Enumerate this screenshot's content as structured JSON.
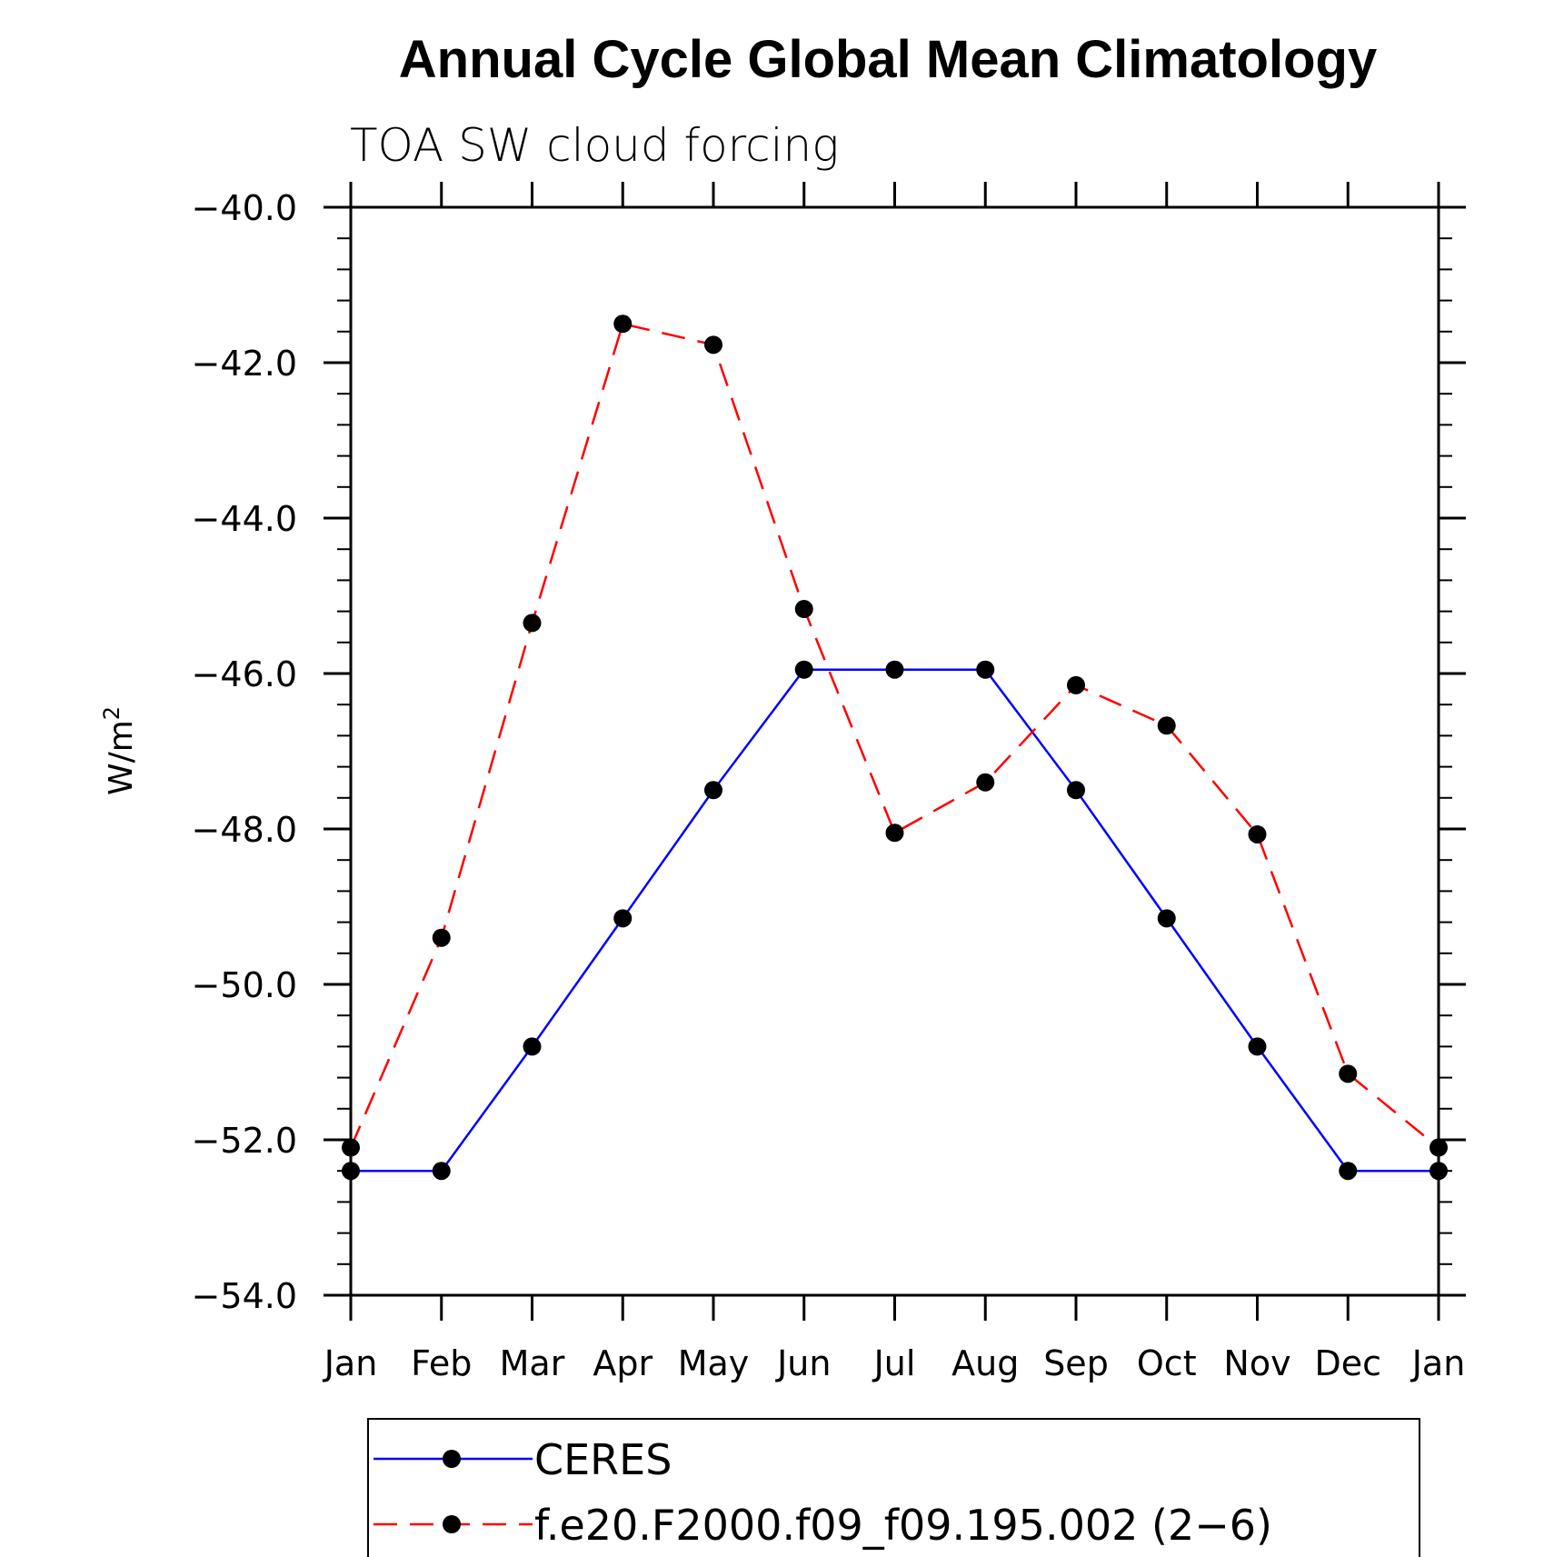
{
  "chart_data": {
    "type": "line",
    "title": "Annual Cycle Global Mean Climatology",
    "subtitle": "TOA SW cloud forcing",
    "ylabel": "W/m",
    "ylabel_sup": "2",
    "xlabel": "",
    "categories": [
      "Jan",
      "Feb",
      "Mar",
      "Apr",
      "May",
      "Jun",
      "Jul",
      "Aug",
      "Sep",
      "Oct",
      "Nov",
      "Dec",
      "Jan"
    ],
    "ylim": [
      -54.0,
      -40.0
    ],
    "yticks": [
      -40.0,
      -42.0,
      -44.0,
      -46.0,
      -48.0,
      -50.0,
      -52.0,
      -54.0
    ],
    "ytick_labels": [
      "−40.0",
      "−42.0",
      "−44.0",
      "−46.0",
      "−48.0",
      "−50.0",
      "−52.0",
      "−54.0"
    ],
    "grid": false,
    "legend_position": "bottom",
    "series": [
      {
        "name": "CERES",
        "color": "#0000ff",
        "line_style": "solid",
        "values": [
          -52.4,
          -52.4,
          -50.8,
          -49.15,
          -47.5,
          -45.95,
          -45.95,
          -45.95,
          -47.5,
          -49.15,
          -50.8,
          -52.4,
          -52.4
        ]
      },
      {
        "name": "f.e20.F2000.f09_f09.195.002 (2−6)",
        "color": "#ff0000",
        "line_style": "dashed",
        "values": [
          -52.1,
          -49.4,
          -45.35,
          -41.5,
          -41.77,
          -45.17,
          -48.05,
          -47.4,
          -46.15,
          -46.67,
          -48.07,
          -51.15,
          -52.1
        ]
      }
    ]
  }
}
